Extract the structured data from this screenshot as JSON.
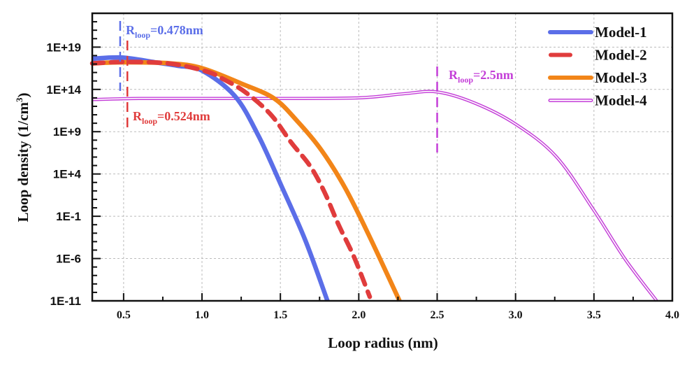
{
  "chart_data": {
    "type": "line",
    "xlabel": "Loop radius (nm)",
    "ylabel": "Loop density (1/cm",
    "ylabel_sup": "3",
    "ylabel_end": ")",
    "xlim": [
      0.3,
      4.0
    ],
    "ylim": [
      1e-11,
      1e+23
    ],
    "yscale": "log",
    "grid": true,
    "legend_position": "top-right",
    "xticks": [
      0.5,
      1.0,
      1.5,
      2.0,
      2.5,
      3.0,
      3.5,
      4.0
    ],
    "xtick_labels": [
      "0.5",
      "1.0",
      "1.5",
      "2.0",
      "2.5",
      "3.0",
      "3.5",
      "4.0"
    ],
    "yticks": [
      1e+19,
      100000000000000.0,
      1000000000.0,
      10000.0,
      0.1,
      1e-06,
      1e-11
    ],
    "ytick_labels": [
      "1E+19",
      "1E+14",
      "1E+9",
      "1E+4",
      "1E-1",
      "1E-6",
      "1E-11"
    ],
    "series": [
      {
        "name": "Model-1",
        "color": "#5b6ee8",
        "style": "solid",
        "x": [
          0.3,
          0.49,
          0.7,
          0.85,
          1.0,
          1.21,
          1.36,
          1.51,
          1.66,
          1.8
        ],
        "y": [
          4.3e+17,
          5.8e+17,
          1.6e+17,
          6e+16,
          1.7e+16,
          16000000000000.0,
          330000000.0,
          280.0,
          0.00013,
          1e-11
        ]
      },
      {
        "name": "Model-2",
        "color": "#e03c3c",
        "style": "dashed",
        "x": [
          0.3,
          0.524,
          0.8,
          1.03,
          1.13,
          1.28,
          1.44,
          1.57,
          1.69,
          1.78,
          1.87,
          1.97,
          2.07
        ],
        "y": [
          1.2e+17,
          1.8e+17,
          1.1e+17,
          1.3e+16,
          1900000000000000.0,
          42000000000000.0,
          100000000000.0,
          50000000.0,
          85000.0,
          80,
          0.011,
          1.5e-06,
          3e-11
        ]
      },
      {
        "name": "Model-3",
        "color": "#f28518",
        "style": "solid",
        "x": [
          0.3,
          0.5,
          0.8,
          1.0,
          1.25,
          1.46,
          1.61,
          1.76,
          1.91,
          2.06,
          2.26
        ],
        "y": [
          1.2e+17,
          1.6e+17,
          1.2e+17,
          3.2e+16,
          500000000000000.0,
          8500000000000.0,
          16000000000.0,
          7200000.0,
          280.0,
          0.00085,
          1e-11
        ]
      },
      {
        "name": "Model-4",
        "color": "#c43fd8",
        "style": "double",
        "x": [
          0.3,
          0.6,
          1.0,
          1.5,
          2.0,
          2.29,
          2.5,
          2.74,
          3.0,
          3.26,
          3.5,
          3.7,
          3.9
        ],
        "y": [
          6300000000000.0,
          8500000000000.0,
          8500000000000.0,
          8500000000000.0,
          10000000000000.0,
          31000000000000.0,
          50000000000000.0,
          2400000000000.0,
          7900000000.0,
          1100000.0,
          0.49,
          7.9e-07,
          1e-11
        ]
      }
    ],
    "annotations": [
      {
        "series": "Model-1",
        "color": "#5b6ee8",
        "label": "R",
        "sub": "loop",
        "value": "=0.478nm",
        "x": 0.478
      },
      {
        "series": "Model-2",
        "color": "#e03c3c",
        "label": "R",
        "sub": "loop",
        "value": "=0.524nm",
        "x": 0.524
      },
      {
        "series": "Model-4",
        "color": "#c43fd8",
        "label": "R",
        "sub": "loop",
        "value": "=2.5nm",
        "x": 2.5
      }
    ]
  }
}
